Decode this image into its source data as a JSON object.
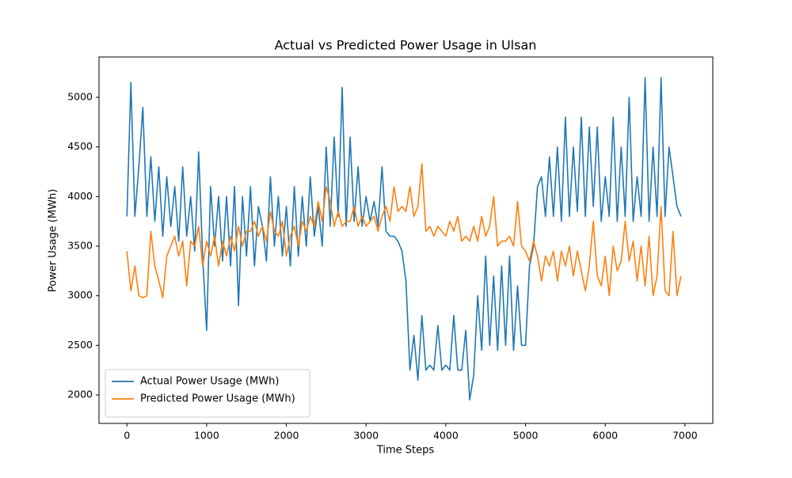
{
  "chart_data": {
    "type": "line",
    "title": "Actual vs Predicted Power Usage in Ulsan",
    "x_label": "Time Steps",
    "y_label": "Power Usage (MWh)",
    "x": [
      0,
      50,
      100,
      150,
      200,
      250,
      300,
      350,
      400,
      450,
      500,
      550,
      600,
      650,
      700,
      750,
      800,
      850,
      900,
      950,
      1000,
      1050,
      1100,
      1150,
      1200,
      1250,
      1300,
      1350,
      1400,
      1450,
      1500,
      1550,
      1600,
      1650,
      1700,
      1750,
      1800,
      1850,
      1900,
      1950,
      2000,
      2050,
      2100,
      2150,
      2200,
      2250,
      2300,
      2350,
      2400,
      2450,
      2500,
      2550,
      2600,
      2650,
      2700,
      2750,
      2800,
      2850,
      2900,
      2950,
      3000,
      3050,
      3100,
      3150,
      3200,
      3250,
      3300,
      3350,
      3400,
      3450,
      3500,
      3550,
      3600,
      3650,
      3700,
      3750,
      3800,
      3850,
      3900,
      3950,
      4000,
      4050,
      4100,
      4150,
      4200,
      4250,
      4300,
      4350,
      4400,
      4450,
      4500,
      4550,
      4600,
      4650,
      4700,
      4750,
      4800,
      4850,
      4900,
      4950,
      5000,
      5050,
      5100,
      5150,
      5200,
      5250,
      5300,
      5350,
      5400,
      5450,
      5500,
      5550,
      5600,
      5650,
      5700,
      5750,
      5800,
      5850,
      5900,
      5950,
      6000,
      6050,
      6100,
      6150,
      6200,
      6250,
      6300,
      6350,
      6400,
      6450,
      6500,
      6550,
      6600,
      6650,
      6700,
      6750,
      6800,
      6850,
      6900,
      6950
    ],
    "series": [
      {
        "name": "Actual Power Usage (MWh)",
        "color": "#1f77b4",
        "values": [
          3800,
          5150,
          3800,
          4300,
          4900,
          3800,
          4400,
          3750,
          4300,
          3600,
          4200,
          3700,
          4100,
          3550,
          4300,
          3600,
          4000,
          3450,
          4450,
          3400,
          2650,
          4100,
          3500,
          4000,
          3350,
          4000,
          3300,
          4100,
          2900,
          4000,
          3400,
          4100,
          3300,
          3900,
          3700,
          3350,
          4200,
          3500,
          4000,
          3400,
          3900,
          3300,
          4100,
          3400,
          4000,
          3500,
          4200,
          3600,
          3900,
          3500,
          4500,
          3700,
          4600,
          3800,
          5100,
          3700,
          4600,
          3750,
          4300,
          3700,
          4000,
          3750,
          3950,
          3700,
          4300,
          3650,
          3600,
          3600,
          3550,
          3450,
          3150,
          2250,
          2600,
          2150,
          2800,
          2250,
          2300,
          2250,
          2700,
          2250,
          2300,
          2250,
          2800,
          2250,
          2250,
          2650,
          1950,
          2200,
          3000,
          2450,
          3400,
          2500,
          3200,
          2450,
          3300,
          2500,
          3400,
          2450,
          3100,
          2500,
          2500,
          3300,
          3500,
          4100,
          4200,
          3800,
          4400,
          3800,
          4500,
          3750,
          4800,
          3800,
          4500,
          3850,
          4800,
          3800,
          4700,
          3900,
          4700,
          3750,
          4200,
          3800,
          4800,
          3750,
          4500,
          3800,
          5000,
          3750,
          4200,
          3800,
          5200,
          3750,
          4500,
          3800,
          5200,
          3800,
          4500,
          4200,
          3900,
          3800
        ]
      },
      {
        "name": "Predicted Power Usage (MWh)",
        "color": "#ff7f0e",
        "values": [
          3450,
          3050,
          3300,
          3000,
          2980,
          3000,
          3650,
          3300,
          3150,
          2980,
          3400,
          3500,
          3600,
          3400,
          3550,
          3100,
          3550,
          3500,
          3700,
          3300,
          3550,
          3400,
          3600,
          3300,
          3550,
          3400,
          3600,
          3450,
          3700,
          3500,
          3650,
          3650,
          3750,
          3600,
          3700,
          3550,
          3850,
          3650,
          3600,
          3750,
          3400,
          3600,
          3700,
          3500,
          3750,
          3650,
          3800,
          3700,
          3950,
          3750,
          4100,
          3950,
          3700,
          3850,
          3700,
          3750,
          3750,
          3900,
          3700,
          3800,
          3700,
          3750,
          3800,
          3650,
          3800,
          3900,
          3750,
          4100,
          3850,
          3900,
          3850,
          4100,
          3800,
          3900,
          4330,
          3650,
          3700,
          3600,
          3700,
          3650,
          3600,
          3750,
          3650,
          3800,
          3550,
          3600,
          3550,
          3700,
          3550,
          3800,
          3600,
          3700,
          4000,
          3500,
          3550,
          3550,
          3600,
          3500,
          3950,
          3500,
          3450,
          3350,
          3550,
          3400,
          3150,
          3400,
          3300,
          3450,
          3150,
          3450,
          3300,
          3500,
          3200,
          3450,
          3250,
          3050,
          3300,
          3750,
          3200,
          3100,
          3400,
          3000,
          3500,
          3250,
          3350,
          3750,
          3350,
          3550,
          3150,
          3500,
          3100,
          3600,
          3000,
          3200,
          3900,
          3050,
          3000,
          3650,
          3000,
          3200
        ]
      }
    ],
    "xlim": [
      -350,
      7349
    ],
    "ylim": [
      1713,
      5407
    ],
    "xticks": [
      0,
      1000,
      2000,
      3000,
      4000,
      5000,
      6000,
      7000
    ],
    "yticks": [
      2000,
      2500,
      3000,
      3500,
      4000,
      4500,
      5000
    ],
    "legend": "lower left"
  }
}
